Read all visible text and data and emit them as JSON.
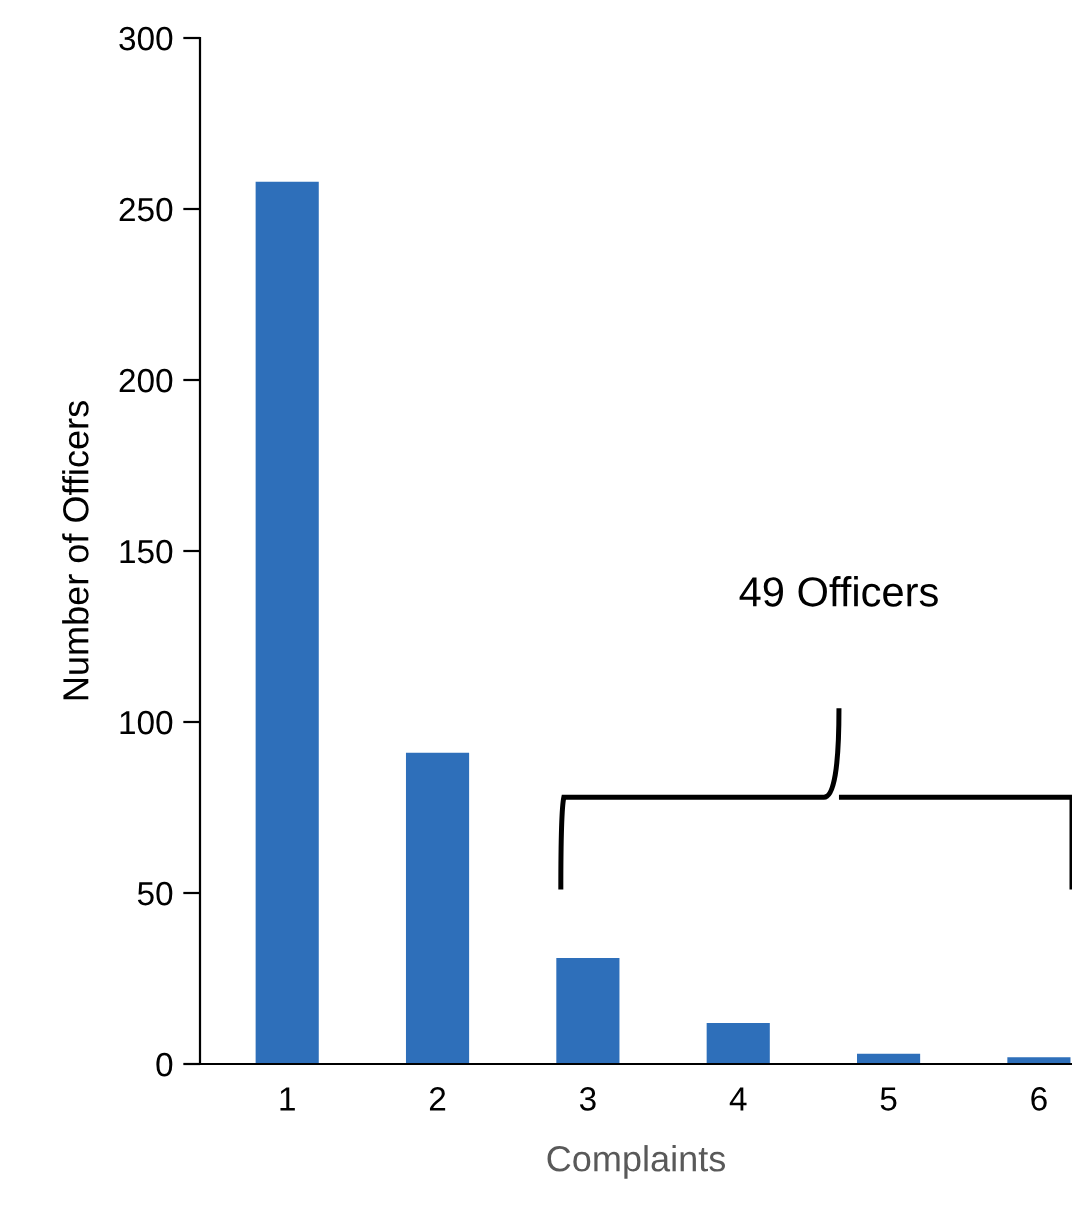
{
  "chart_data": {
    "type": "bar",
    "xlabel": "Complaints",
    "ylabel": "Number of Officers",
    "categories": [
      "1",
      "2",
      "3",
      "4",
      "5",
      "6"
    ],
    "values": [
      258,
      91,
      31,
      12,
      3,
      2
    ],
    "color": "#2e6fba",
    "ylim": [
      0,
      300
    ],
    "yticks": [
      0,
      50,
      100,
      150,
      200,
      250,
      300
    ],
    "grid": false,
    "annotations": [
      "49 Officers"
    ]
  }
}
